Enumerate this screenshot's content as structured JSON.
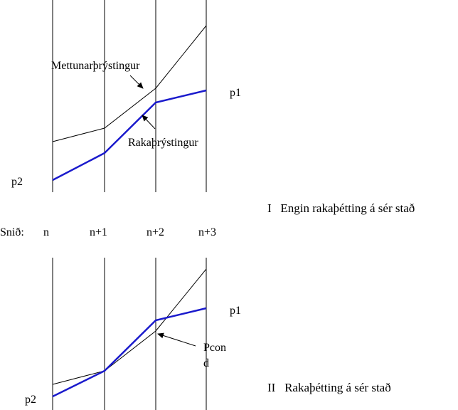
{
  "colors": {
    "background": "#ffffff",
    "gridline": "#000000",
    "thin_curve": "#000000",
    "thick_curve": "#1a1acc"
  },
  "sections_label": "Snið:",
  "sections": [
    "n",
    "n+1",
    "n+2",
    "n+3"
  ],
  "top_diagram": {
    "label_saturation": "Mettunarþrýstingur",
    "label_vapor": "Rakaþrýstingur",
    "label_p1": "p1",
    "label_p2": "p2",
    "caption": "I   Engin rakaþétting á sér stað"
  },
  "bottom_diagram": {
    "label_pcond_line1": "Pcon",
    "label_pcond_line2": "d",
    "label_p1": "p1",
    "label_p2": "p2",
    "caption": "II   Rakaþétting á sér stað"
  }
}
